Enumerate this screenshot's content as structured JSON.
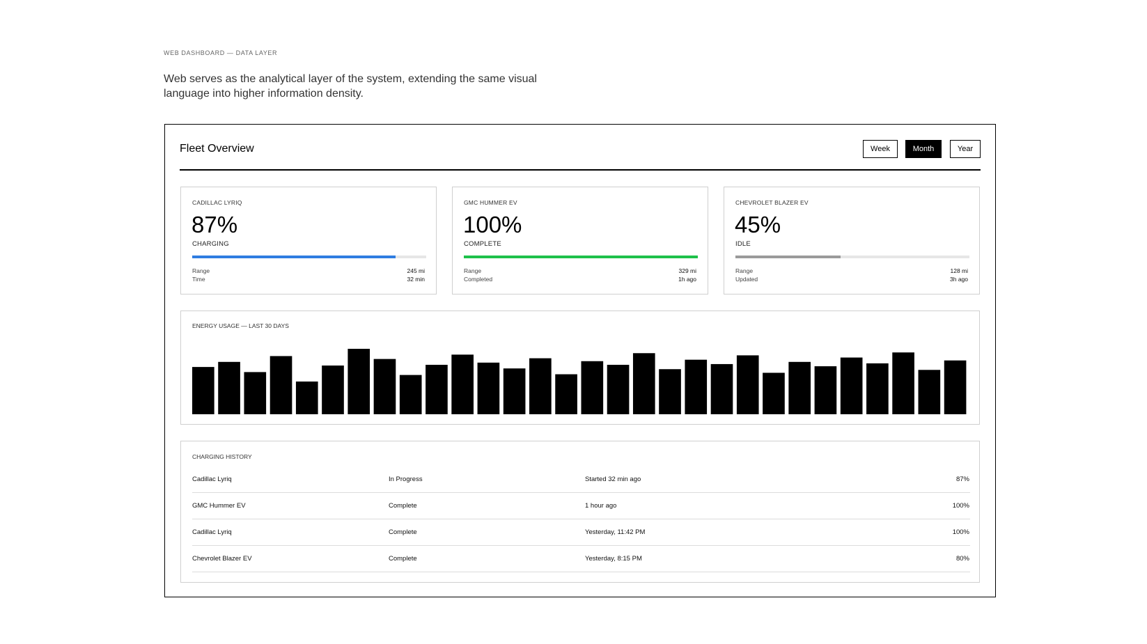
{
  "header": {
    "eyebrow": "WEB DASHBOARD — DATA LAYER",
    "description": "Web serves as the analytical layer of the system, extending the same visual language into higher information density."
  },
  "dashboard": {
    "title": "Fleet Overview",
    "periods": [
      "Week",
      "Month",
      "Year"
    ],
    "selected_period": 1,
    "vehicles": [
      {
        "name": "CADILLAC LYRIQ",
        "charge": {
          "value": 87,
          "label": "87%"
        },
        "status": "CHARGING",
        "color": "#2f7de1",
        "stats": [
          [
            "Range",
            "245 mi"
          ],
          [
            "Time",
            "32 min"
          ]
        ]
      },
      {
        "name": "GMC HUMMER EV",
        "charge": {
          "value": 100,
          "label": "100%"
        },
        "status": "COMPLETE",
        "color": "#1ec14a",
        "stats": [
          [
            "Range",
            "329 mi"
          ],
          [
            "Completed",
            "1h ago"
          ]
        ]
      },
      {
        "name": "CHEVROLET BLAZER EV",
        "charge": {
          "value": 45,
          "label": "45%"
        },
        "status": "IDLE",
        "color": "#9a9a9a",
        "stats": [
          [
            "Range",
            "128 mi"
          ],
          [
            "Updated",
            "3h ago"
          ]
        ]
      }
    ],
    "energy": {
      "type": "bar",
      "title": "ENERGY USAGE — LAST 30 DAYS",
      "color": "#000000",
      "values": [
        65,
        72,
        58,
        80,
        45,
        67,
        90,
        76,
        54,
        68,
        82,
        71,
        63,
        77,
        55,
        73,
        68,
        84,
        62,
        75,
        69,
        81,
        57,
        72,
        66,
        78,
        70,
        85,
        61,
        74
      ]
    },
    "history": {
      "title": "CHARGING HISTORY",
      "rows": [
        [
          "Cadillac Lyriq",
          "In Progress",
          "Started 32 min ago",
          "87%"
        ],
        [
          "GMC Hummer EV",
          "Complete",
          "1 hour ago",
          "100%"
        ],
        [
          "Cadillac Lyriq",
          "Complete",
          "Yesterday, 11:42 PM",
          "100%"
        ],
        [
          "Chevrolet Blazer EV",
          "Complete",
          "Yesterday, 8:15 PM",
          "80%"
        ]
      ]
    }
  }
}
